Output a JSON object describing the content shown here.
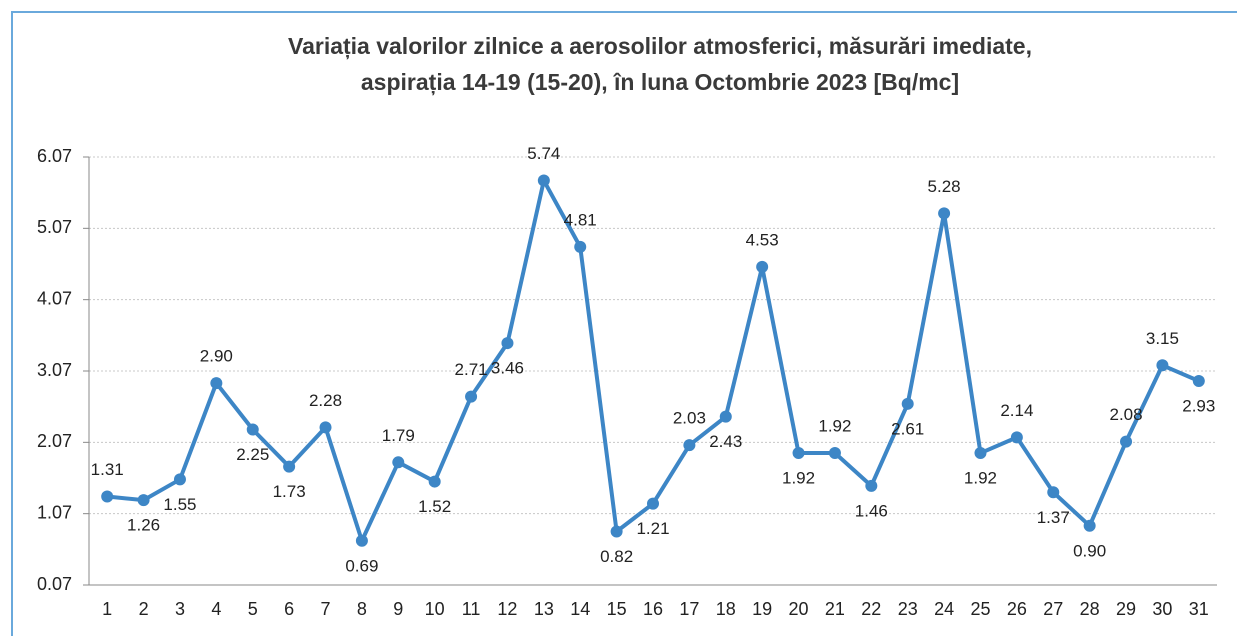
{
  "chart_data": {
    "type": "line",
    "title": [
      "Variația valorilor zilnice a aerosolilor atmosferici, măsurări  imediate,",
      "aspirația 14-19 (15-20), în luna Octombrie 2023 [Bq/mc]"
    ],
    "categories": [
      "1",
      "2",
      "3",
      "4",
      "5",
      "6",
      "7",
      "8",
      "9",
      "10",
      "11",
      "12",
      "13",
      "14",
      "15",
      "16",
      "17",
      "18",
      "19",
      "20",
      "21",
      "22",
      "23",
      "24",
      "25",
      "26",
      "27",
      "28",
      "29",
      "30",
      "31"
    ],
    "series": [
      {
        "color": "#3d86c6",
        "values": [
          1.31,
          1.26,
          1.55,
          2.9,
          2.25,
          1.73,
          2.28,
          0.69,
          1.79,
          1.52,
          2.71,
          3.46,
          5.74,
          4.81,
          0.82,
          1.21,
          2.03,
          2.43,
          4.53,
          1.92,
          1.92,
          1.46,
          2.61,
          5.28,
          1.92,
          2.14,
          1.37,
          0.9,
          2.08,
          3.15,
          2.93
        ],
        "value_labels": [
          "1.31",
          "1.26",
          "1.55",
          "2.90",
          "2.25",
          "1.73",
          "2.28",
          "0.69",
          "1.79",
          "1.52",
          "2.71",
          "3.46",
          "5.74",
          "4.81",
          "0.82",
          "1.21",
          "2.03",
          "2.43",
          "4.53",
          "1.92",
          "1.92",
          "1.46",
          "2.61",
          "5.28",
          "1.92",
          "2.14",
          "1.37",
          "0.90",
          "2.08",
          "3.15",
          "2.93"
        ]
      }
    ],
    "ylim": [
      0.07,
      6.07
    ],
    "yticks": [
      0.07,
      1.07,
      2.07,
      3.07,
      4.07,
      5.07,
      6.07
    ],
    "grid": true
  }
}
